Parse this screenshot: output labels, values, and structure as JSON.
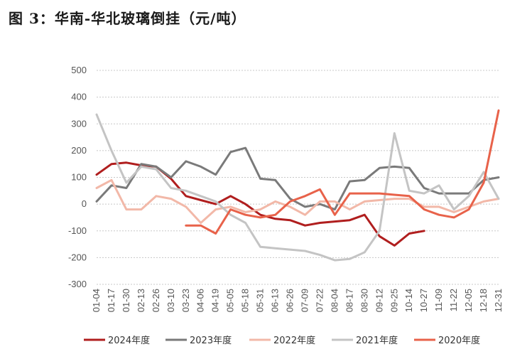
{
  "title": "图 3：华南-华北玻璃倒挂（元/吨）",
  "chart_data": {
    "type": "line",
    "title": "华南-华北玻璃倒挂（元/吨）",
    "ylim": [
      -300,
      500
    ],
    "y_ticks": [
      "500",
      "400",
      "300",
      "200",
      "100",
      "0",
      "-100",
      "-200",
      "-300"
    ],
    "x_ticks": [
      "01-04",
      "01-17",
      "01-30",
      "02-13",
      "02-26",
      "03-10",
      "03-23",
      "04-06",
      "04-19",
      "05-05",
      "05-18",
      "05-31",
      "06-13",
      "06-26",
      "07-09",
      "07-22",
      "08-04",
      "08-17",
      "08-30",
      "09-12",
      "09-25",
      "10-14",
      "10-27",
      "11-09",
      "11-22",
      "12-05",
      "12-18",
      "12-31"
    ],
    "grid": true,
    "legend_position": "bottom",
    "series": [
      {
        "name": "2024年度",
        "color": "#b01e1e",
        "values": [
          110,
          150,
          155,
          145,
          140,
          95,
          30,
          15,
          0,
          30,
          0,
          -40,
          -55,
          -60,
          -80,
          -70,
          -65,
          -60,
          -40,
          -120,
          -155,
          -110,
          -100,
          null,
          null,
          null,
          null,
          null
        ]
      },
      {
        "name": "2023年度",
        "color": "#7a7a7a",
        "values": [
          10,
          70,
          60,
          150,
          140,
          100,
          160,
          140,
          110,
          195,
          210,
          95,
          90,
          20,
          -10,
          0,
          -20,
          85,
          90,
          135,
          140,
          135,
          60,
          40,
          40,
          40,
          90,
          100
        ]
      },
      {
        "name": "2022年度",
        "color": "#f2b8a8",
        "values": [
          60,
          90,
          -20,
          -20,
          30,
          20,
          -10,
          -70,
          -20,
          -10,
          -30,
          -20,
          10,
          -10,
          -40,
          10,
          10,
          -20,
          10,
          15,
          20,
          20,
          -10,
          -10,
          -30,
          -10,
          10,
          20
        ]
      },
      {
        "name": "2021年度",
        "color": "#c4c4c4",
        "values": [
          335,
          200,
          80,
          140,
          130,
          60,
          50,
          30,
          10,
          -40,
          -70,
          -160,
          -165,
          -170,
          -175,
          -190,
          -210,
          -205,
          -180,
          -100,
          265,
          50,
          40,
          70,
          -20,
          30,
          120,
          20
        ]
      },
      {
        "name": "2020年度",
        "color": "#e8624a",
        "values": [
          null,
          null,
          null,
          null,
          null,
          null,
          -80,
          -80,
          -110,
          -20,
          -40,
          -50,
          -40,
          10,
          30,
          55,
          -40,
          40,
          40,
          40,
          35,
          30,
          -20,
          -40,
          -50,
          -20,
          80,
          350
        ]
      }
    ]
  }
}
